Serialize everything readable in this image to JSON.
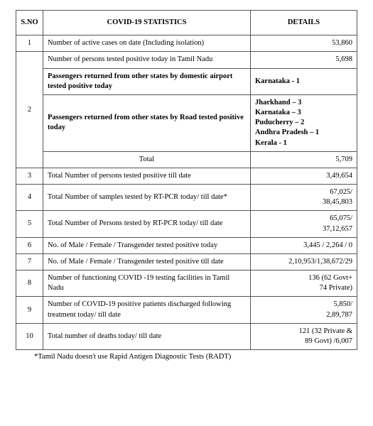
{
  "header": {
    "sno": "S.NO",
    "stat": "COVID-19 STATISTICS",
    "details": "DETAILS"
  },
  "rows": {
    "r1": {
      "sno": "1",
      "stat": "Number of active cases on date (Including isolation)",
      "det": "53,860"
    },
    "r2a": {
      "stat": "Number of persons tested positive today in Tamil Nadu",
      "det": "5,698"
    },
    "r2b": {
      "sno": "2",
      "stat": "Passengers returned from other states by domestic airport tested positive today",
      "det_lines": [
        "Karnataka - 1"
      ]
    },
    "r2c": {
      "stat": "Passengers returned from other states by Road tested positive today",
      "det_lines": [
        "Jharkhand – 3",
        "Karnataka – 3",
        "Puducherry – 2",
        "Andhra Pradesh – 1",
        "Kerala - 1"
      ]
    },
    "r2d": {
      "stat": "Total",
      "det": "5,709"
    },
    "r3": {
      "sno": "3",
      "stat": "Total Number of persons tested positive till date",
      "det": "3,49,654"
    },
    "r4": {
      "sno": "4",
      "stat": "Total Number of samples tested by  RT-PCR today/ till date*",
      "det_lines": [
        "67,025/",
        "38,45,803"
      ]
    },
    "r5": {
      "sno": "5",
      "stat": "Total Number of Persons tested by  RT-PCR today/ till date",
      "det_lines": [
        "65,075/",
        "37,12,657"
      ]
    },
    "r6": {
      "sno": "6",
      "stat": "No. of Male / Female / Transgender tested positive today",
      "det": "3,445 / 2,264 / 0"
    },
    "r7": {
      "sno": "7",
      "stat": "No. of Male / Female / Transgender tested positive till date",
      "det": "2,10,953/1,38,672/29"
    },
    "r8": {
      "sno": "8",
      "stat": "Number of functioning COVID -19 testing facilities in Tamil Nadu",
      "det_lines": [
        "136 (62 Govt+",
        "74 Private)"
      ]
    },
    "r9": {
      "sno": "9",
      "stat": "Number of COVID-19 positive patients discharged following treatment today/ till date",
      "det_lines": [
        "5,850/",
        "2,89,787"
      ]
    },
    "r10": {
      "sno": "10",
      "stat": "Total number of deaths today/ till date",
      "det_lines": [
        "121 (32 Private &",
        "89 Govt) /6,007"
      ]
    }
  },
  "footnote": "*Tamil Nadu doesn't use Rapid Antigen Diagnostic Tests (RADT)"
}
